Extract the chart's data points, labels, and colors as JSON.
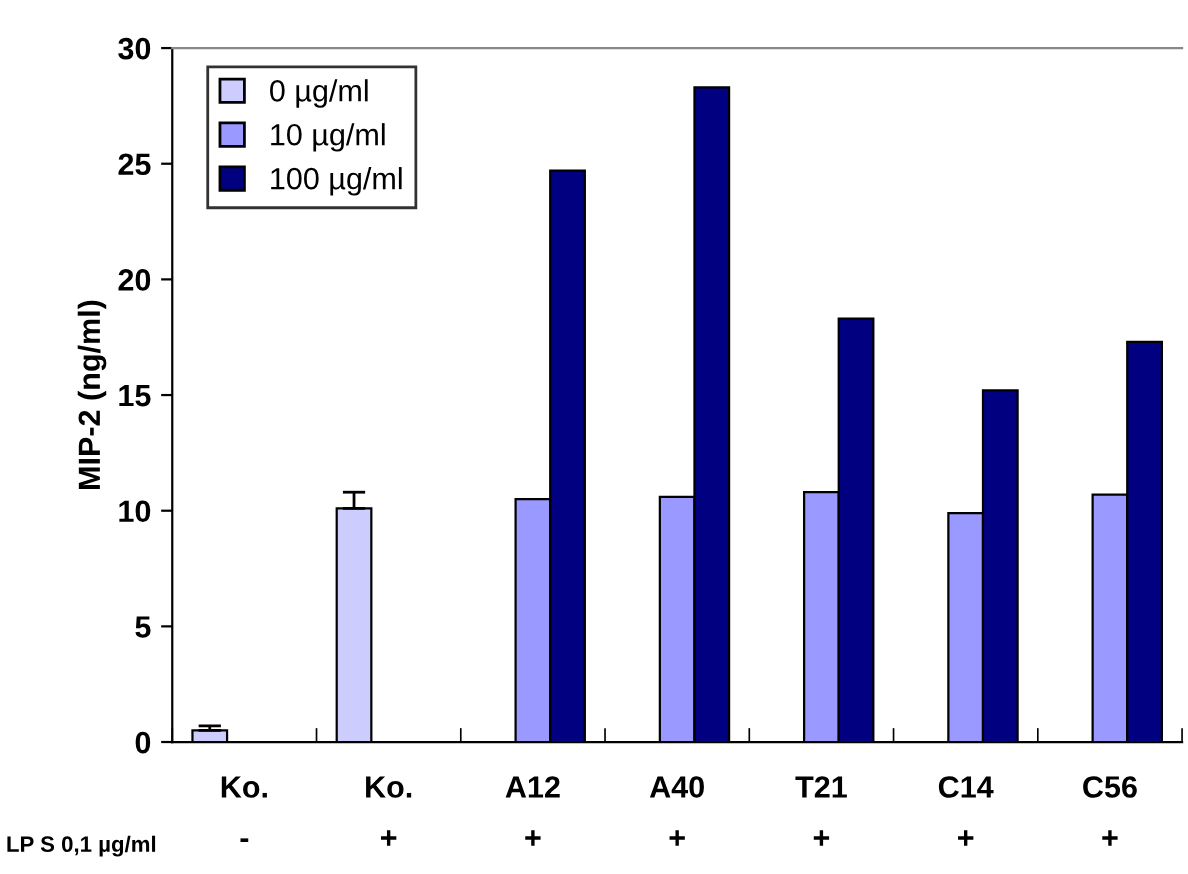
{
  "chart_data": {
    "type": "bar",
    "ylabel": "MIP-2 (ng/ml)",
    "categories": [
      "Ko.\n-",
      "Ko.\n+",
      "A12\n+",
      "A40\n+",
      "T21\n+",
      "C14\n+",
      "C56\n+"
    ],
    "series": [
      {
        "name": "0 µg/ml",
        "color": "#ccccff",
        "values": [
          0.5,
          10.1,
          null,
          null,
          null,
          null,
          null
        ],
        "errors": [
          0.2,
          0.7,
          null,
          null,
          null,
          null,
          null
        ]
      },
      {
        "name": "10 µg/ml",
        "color": "#9999ff",
        "values": [
          null,
          null,
          10.5,
          10.6,
          10.8,
          9.9,
          10.7
        ]
      },
      {
        "name": "100 µg/ml",
        "color": "#000080",
        "values": [
          null,
          null,
          24.7,
          28.3,
          18.3,
          15.2,
          17.3
        ]
      }
    ],
    "ylim": [
      0,
      30
    ],
    "yticks": [
      0,
      5,
      10,
      15,
      20,
      25,
      30
    ],
    "annotations": [
      "LP S 0,1 µg/ml"
    ],
    "legend": "top left",
    "grid": false
  }
}
